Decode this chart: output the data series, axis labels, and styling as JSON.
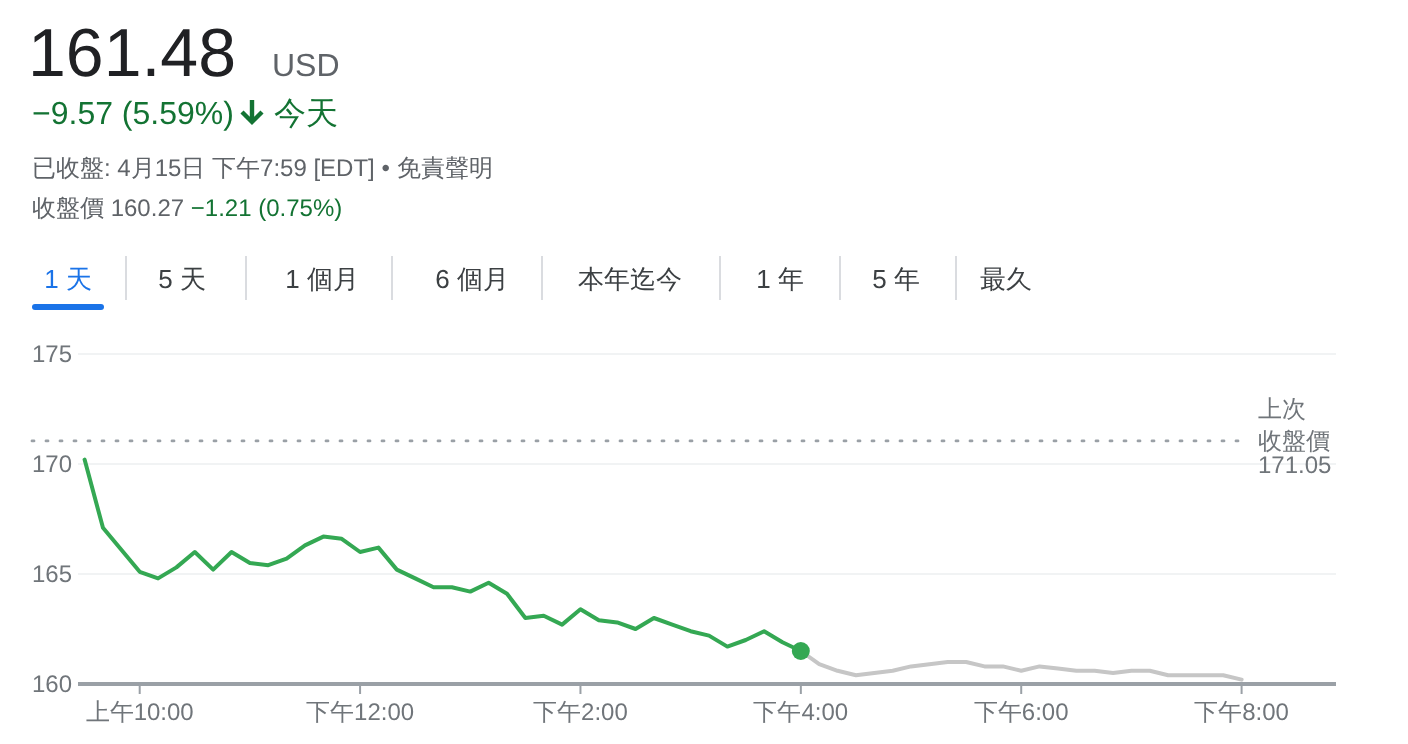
{
  "chart_data": {
    "type": "line",
    "title": "161.48",
    "subtitle": "USD",
    "annotations": [
      "−9.57 (5.59%)",
      "今天",
      "已收盤: 4月15日 下午7:59 [EDT] • 免責聲明",
      "收盤價 160.27",
      "−1.21 (0.75%)",
      "1 天",
      "5 天",
      "1 個月",
      "6 個月",
      "本年迄今",
      "1 年",
      "5 年",
      "最久",
      "171.05"
    ],
    "categories": [
      null,
      null,
      null,
      "上午10:00",
      null,
      null,
      null,
      null,
      null,
      null,
      null,
      null,
      null,
      null,
      null,
      "下午12:00",
      null,
      null,
      null,
      null,
      null,
      null,
      null,
      null,
      null,
      null,
      null,
      "下午2:00",
      null,
      null,
      null,
      null,
      null,
      null,
      null,
      null,
      null,
      null,
      null,
      "下午4:00",
      null,
      null,
      null,
      null,
      null,
      null,
      null,
      null,
      null,
      null,
      null,
      "下午6:00",
      null,
      null,
      null,
      null,
      null,
      null,
      null,
      null,
      null,
      null,
      null,
      "下午8:00"
    ],
    "ylim": [
      160,
      175
    ],
    "yticks": [
      160,
      165,
      170,
      175
    ],
    "grid": "y",
    "ref_lines": [
      {
        "axis": "y",
        "value": 171.05,
        "label": "上次收盤價",
        "color": "#9aa0a6",
        "line_style": "dotted"
      }
    ],
    "series": [
      {
        "color": "#34a853",
        "values": [
          170.2,
          167.1,
          166.1,
          165.1,
          164.8,
          165.3,
          166.0,
          165.2,
          166.0,
          165.5,
          165.4,
          165.7,
          166.3,
          166.7,
          166.6,
          166.0,
          166.2,
          165.2,
          164.8,
          164.4,
          164.4,
          164.2,
          164.6,
          164.1,
          163.0,
          163.1,
          162.7,
          163.4,
          162.9,
          162.8,
          162.5,
          163.0,
          162.7,
          162.4,
          162.2,
          161.7,
          162.0,
          162.4,
          161.9,
          161.5,
          null,
          null,
          null,
          null,
          null,
          null,
          null,
          null,
          null,
          null,
          null,
          null,
          null,
          null,
          null,
          null,
          null,
          null,
          null,
          null,
          null,
          null,
          null,
          null
        ]
      },
      {
        "color": "#c6c6c6",
        "values": [
          null,
          null,
          null,
          null,
          null,
          null,
          null,
          null,
          null,
          null,
          null,
          null,
          null,
          null,
          null,
          null,
          null,
          null,
          null,
          null,
          null,
          null,
          null,
          null,
          null,
          null,
          null,
          null,
          null,
          null,
          null,
          null,
          null,
          null,
          null,
          null,
          null,
          null,
          null,
          161.5,
          160.9,
          160.6,
          160.4,
          160.5,
          160.6,
          160.8,
          160.9,
          161.0,
          161.0,
          160.8,
          160.8,
          160.6,
          160.8,
          160.7,
          160.6,
          160.6,
          160.5,
          160.6,
          160.6,
          160.4,
          160.4,
          160.4,
          160.4,
          160.2
        ]
      },
      {
        "type": "scatter",
        "color": "#34a853",
        "values": [
          null,
          null,
          null,
          null,
          null,
          null,
          null,
          null,
          null,
          null,
          null,
          null,
          null,
          null,
          null,
          null,
          null,
          null,
          null,
          null,
          null,
          null,
          null,
          null,
          null,
          null,
          null,
          null,
          null,
          null,
          null,
          null,
          null,
          null,
          null,
          null,
          null,
          null,
          null,
          161.5,
          null,
          null,
          null,
          null,
          null,
          null,
          null,
          null,
          null,
          null,
          null,
          null,
          null,
          null,
          null,
          null,
          null,
          null,
          null,
          null,
          null,
          null,
          null,
          null
        ]
      }
    ]
  }
}
